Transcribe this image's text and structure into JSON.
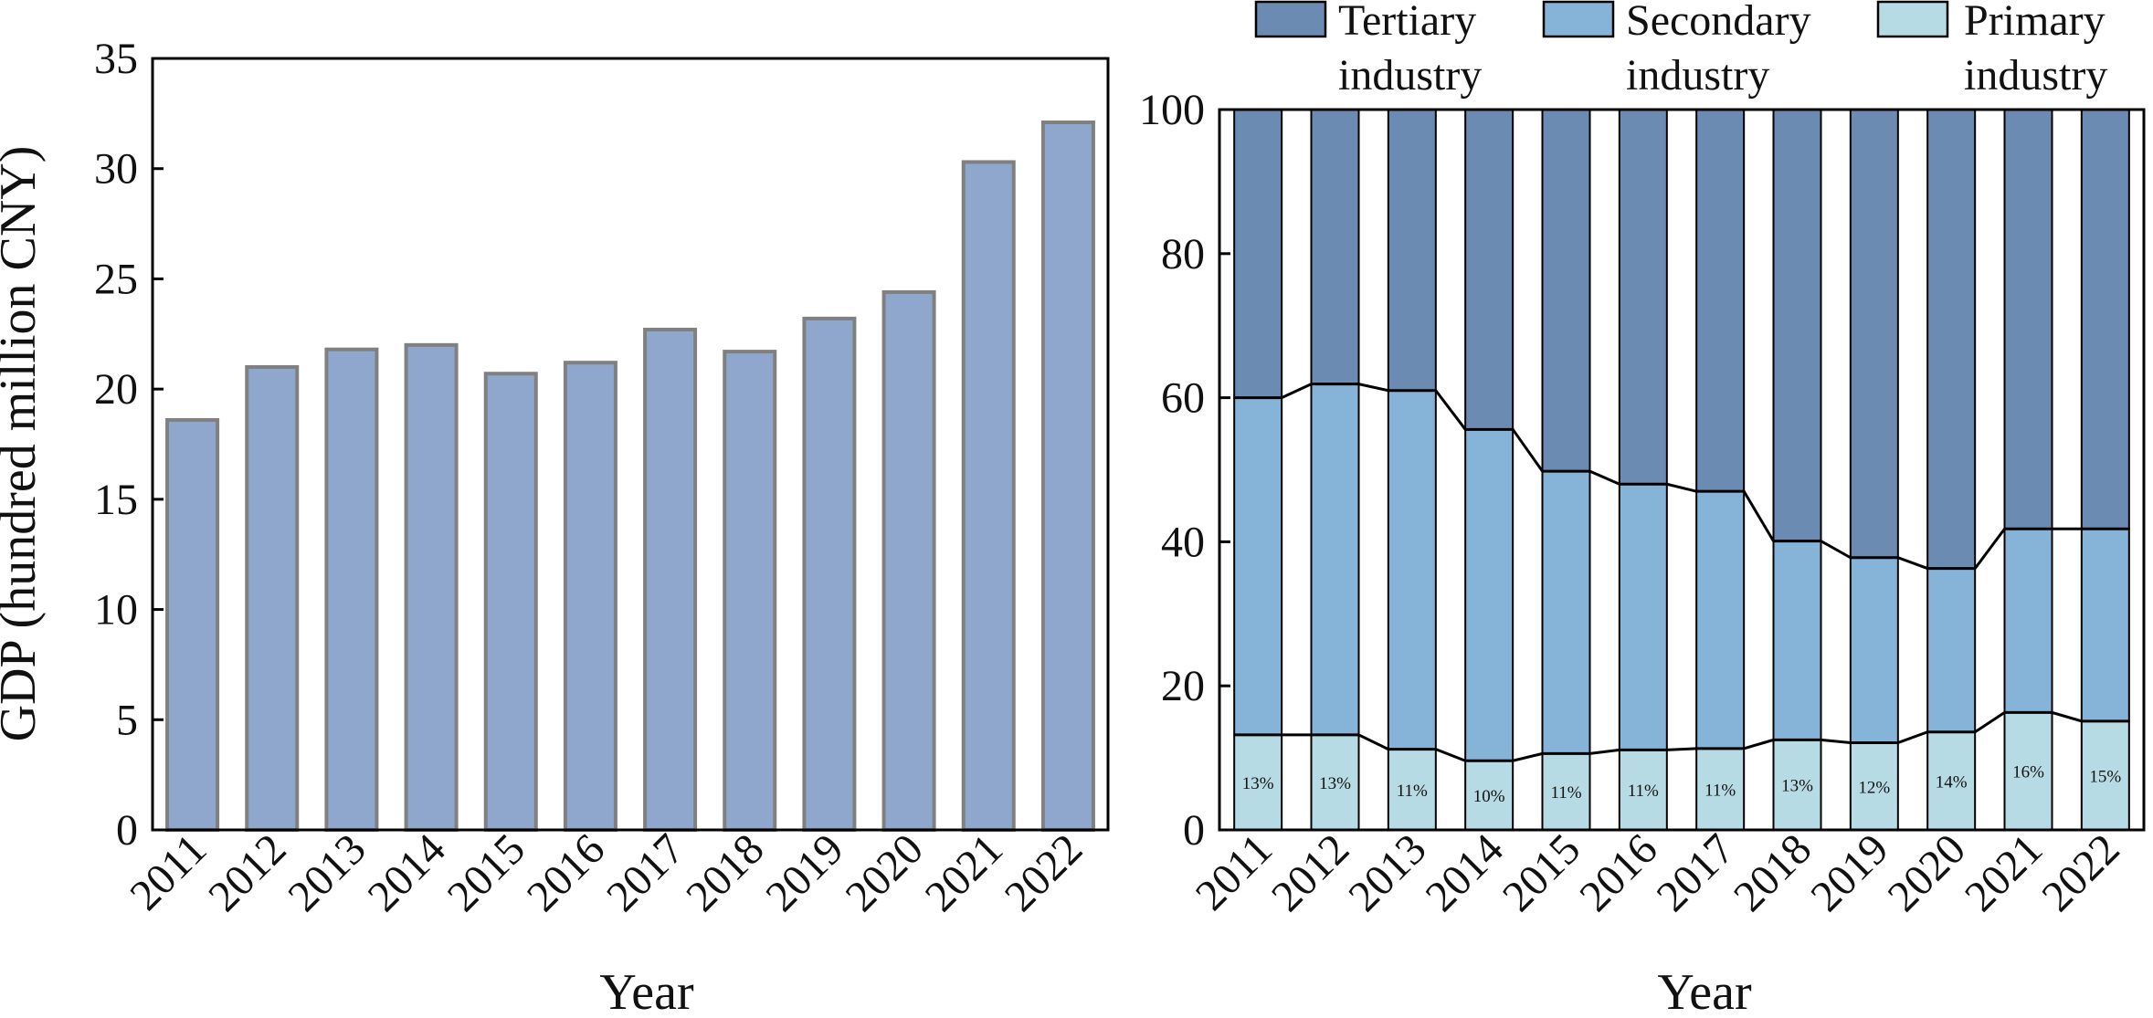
{
  "chart_data": [
    {
      "type": "bar",
      "categories": [
        "2011",
        "2012",
        "2013",
        "2014",
        "2015",
        "2016",
        "2017",
        "2018",
        "2019",
        "2020",
        "2021",
        "2022"
      ],
      "values": [
        18.6,
        21.0,
        21.8,
        22.0,
        20.7,
        21.2,
        22.7,
        21.7,
        23.2,
        24.4,
        30.3,
        32.1
      ],
      "xlabel": "Year",
      "ylabel": "GDP (hundred million CNY)",
      "ylim": [
        0,
        35
      ],
      "yticks": [
        0,
        5,
        10,
        15,
        20,
        25,
        30,
        35
      ],
      "grid": false,
      "colors": {
        "bar": "#8fa7cc",
        "bar_edge": "#808080"
      }
    },
    {
      "type": "bar",
      "stacked": true,
      "categories": [
        "2011",
        "2012",
        "2013",
        "2014",
        "2015",
        "2016",
        "2017",
        "2018",
        "2019",
        "2020",
        "2021",
        "2022"
      ],
      "series": [
        {
          "name": "Primary industry",
          "values": [
            13.2,
            13.2,
            11.2,
            9.6,
            10.6,
            11.1,
            11.3,
            12.5,
            12.1,
            13.6,
            16.3,
            15.1
          ],
          "color": "#b6dbe4"
        },
        {
          "name": "Secondary industry",
          "values": [
            46.8,
            48.7,
            49.8,
            46.0,
            39.2,
            36.9,
            35.7,
            27.6,
            25.7,
            22.7,
            25.5,
            26.7
          ],
          "color": "#86b3d8"
        },
        {
          "name": "Tertiary industry",
          "values": [
            40.0,
            38.1,
            39.0,
            44.4,
            50.2,
            52.0,
            53.0,
            59.9,
            62.2,
            63.7,
            58.2,
            58.2
          ],
          "color": "#6b8bb2"
        }
      ],
      "data_labels": [
        "13%",
        "13%",
        "11%",
        "10%",
        "11%",
        "11%",
        "11%",
        "13%",
        "12%",
        "14%",
        "16%",
        "15%"
      ],
      "legend_labels": [
        {
          "line1": "Tertiary",
          "line2": "industry"
        },
        {
          "line1": "Secondary",
          "line2": "industry"
        },
        {
          "line1": "Primary",
          "line2": "industry"
        }
      ],
      "xlabel": "Year",
      "ylabel": "",
      "ylim": [
        0,
        100
      ],
      "yticks": [
        0,
        20,
        40,
        60,
        80,
        100
      ],
      "legend": "top",
      "grid": false
    }
  ]
}
